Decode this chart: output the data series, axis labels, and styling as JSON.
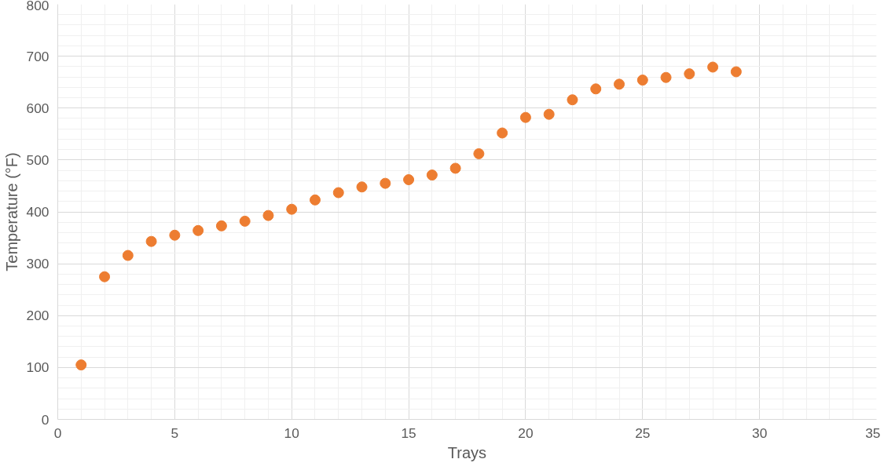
{
  "chart_data": {
    "type": "scatter",
    "xlabel": "Trays",
    "ylabel": "Temperature (°F)",
    "x": [
      1,
      2,
      3,
      4,
      5,
      6,
      7,
      8,
      9,
      10,
      11,
      12,
      13,
      14,
      15,
      16,
      17,
      18,
      19,
      20,
      21,
      22,
      23,
      24,
      25,
      26,
      27,
      28,
      29
    ],
    "series": [
      {
        "color": "#ed7d31",
        "values": [
          105,
          275,
          316,
          343,
          355,
          364,
          373,
          382,
          393,
          405,
          423,
          437,
          448,
          455,
          462,
          471,
          484,
          512,
          552,
          582,
          588,
          616,
          637,
          646,
          654,
          659,
          666,
          679,
          670
        ]
      }
    ],
    "xlim": [
      0,
      35
    ],
    "xticks": [
      0,
      5,
      10,
      15,
      20,
      25,
      30,
      35
    ],
    "ylim": [
      0,
      800
    ],
    "yticks": [
      0,
      100,
      200,
      300,
      400,
      500,
      600,
      700,
      800
    ],
    "grid": true,
    "marker": "circle"
  }
}
